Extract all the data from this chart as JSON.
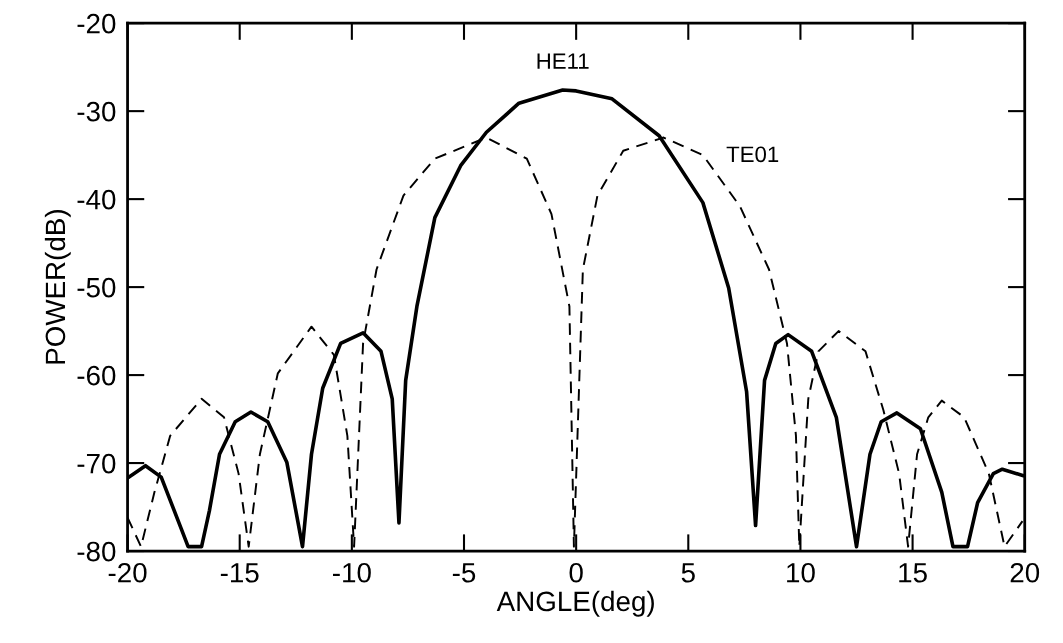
{
  "chart_data": {
    "type": "line",
    "xlabel": "ANGLE(deg)",
    "ylabel": "POWER(dB)",
    "xlim": [
      -20,
      20
    ],
    "xticks": [
      -20,
      -15,
      -10,
      -5,
      0,
      5,
      10,
      15,
      20
    ],
    "ylim": [
      -80,
      -20
    ],
    "yticks": [
      -80,
      -70,
      -60,
      -50,
      -40,
      -30,
      -20
    ],
    "grid": false,
    "marker": "none",
    "annotations": [
      {
        "text": "HE11",
        "x": -0.6,
        "y": -27.6
      },
      {
        "text": "TE01",
        "x": 3.9,
        "y": -33
      }
    ],
    "series": [
      {
        "color": "#000000",
        "line_style": "solid",
        "x": [
          -20,
          -19.2,
          -18.5,
          -17.6,
          -17.3,
          -16.7,
          -16.35,
          -15.9,
          -15.2,
          -14.5,
          -13.75,
          -12.9,
          -12.2,
          -11.8,
          -11.3,
          -10.5,
          -9.5,
          -8.7,
          -8.2,
          -7.9,
          -7.6,
          -7.1,
          -6.3,
          -5.15,
          -4.0,
          -2.55,
          -0.6,
          0,
          1.6,
          3.7,
          5.65,
          6.8,
          7.6,
          8.0,
          8.4,
          8.9,
          9.45,
          10.5,
          11.6,
          12.5,
          13.1,
          13.6,
          14.3,
          15.35,
          16.3,
          16.8,
          17.45,
          17.9,
          18.6,
          19.0,
          19.9
        ],
        "values": [
          -71.7,
          -70.3,
          -71.6,
          -77.5,
          -79.5,
          -79.5,
          -75.4,
          -69,
          -65.3,
          -64.2,
          -65.3,
          -69.9,
          -79.5,
          -69,
          -61.5,
          -56.4,
          -55.2,
          -57.3,
          -62.7,
          -76.8,
          -60.6,
          -52.2,
          -42.1,
          -36.2,
          -32.4,
          -29.1,
          -27.6,
          -27.7,
          -28.6,
          -32.8,
          -40.4,
          -50.1,
          -61.9,
          -77.1,
          -60.6,
          -56.4,
          -55.4,
          -57.3,
          -64.8,
          -79.5,
          -69,
          -65.3,
          -64.3,
          -66.1,
          -73.3,
          -79.5,
          -79.5,
          -74.5,
          -71.2,
          -70.7,
          -71.4
        ]
      },
      {
        "color": "#000000",
        "line_style": "dashed",
        "x": [
          -20,
          -19.4,
          -18.8,
          -18.1,
          -16.7,
          -15.7,
          -15.05,
          -14.6,
          -14.1,
          -13.3,
          -11.8,
          -10.8,
          -10.2,
          -9.9,
          -9.5,
          -8.9,
          -7.7,
          -6.3,
          -4.0,
          -2.2,
          -1.1,
          -0.3,
          -0.1,
          0.3,
          0.95,
          2.1,
          3.9,
          5.65,
          7.3,
          8.6,
          9.4,
          9.8,
          9.95,
          10.35,
          10.8,
          11.7,
          12.9,
          13.7,
          14.4,
          14.8,
          15.2,
          15.7,
          16.3,
          17.3,
          18.4,
          19.1,
          19.9
        ],
        "values": [
          -76.2,
          -79.5,
          -73.3,
          -66.9,
          -62.7,
          -64.8,
          -71.2,
          -79.5,
          -69,
          -59.8,
          -54.5,
          -57.7,
          -66.9,
          -79.5,
          -56.4,
          -48,
          -39.6,
          -35.4,
          -33,
          -35.4,
          -41.7,
          -52.2,
          -79.5,
          -48,
          -39.6,
          -34.5,
          -33,
          -35,
          -40.8,
          -48,
          -56.4,
          -66.9,
          -79.5,
          -62.7,
          -57.3,
          -55,
          -57.3,
          -64,
          -71.2,
          -79.5,
          -69,
          -64.8,
          -62.9,
          -64.8,
          -71.2,
          -79.5,
          -76.6
        ]
      }
    ]
  }
}
